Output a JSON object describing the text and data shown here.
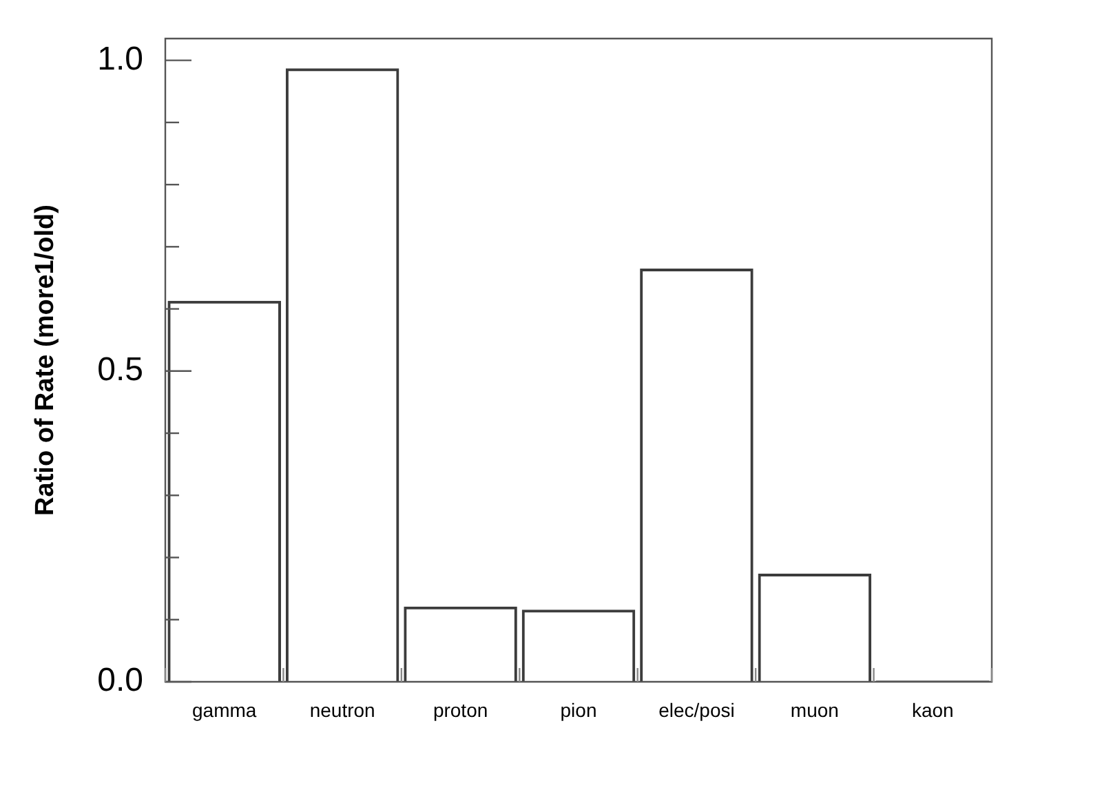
{
  "chart_data": {
    "type": "bar",
    "ylabel": "Ratio of Rate (more1/old)",
    "categories": [
      "gamma",
      "neutron",
      "proton",
      "pion",
      "elec/posi",
      "muon",
      "kaon"
    ],
    "values": [
      0.613,
      0.987,
      0.121,
      0.116,
      0.665,
      0.174,
      0.002
    ],
    "color": "#3c3c3c",
    "ylim": [
      0,
      1.035
    ],
    "yticks": [
      {
        "value": 0,
        "label": "0.0"
      },
      {
        "value": 0.1,
        "label": null
      },
      {
        "value": 0.2,
        "label": null
      },
      {
        "value": 0.3,
        "label": null
      },
      {
        "value": 0.4,
        "label": null
      },
      {
        "value": 0.5,
        "label": "0.5"
      },
      {
        "value": 0.6,
        "label": null
      },
      {
        "value": 0.7,
        "label": null
      },
      {
        "value": 0.8,
        "label": null
      },
      {
        "value": 0.9,
        "label": null
      },
      {
        "value": 1,
        "label": "1.0"
      }
    ]
  }
}
